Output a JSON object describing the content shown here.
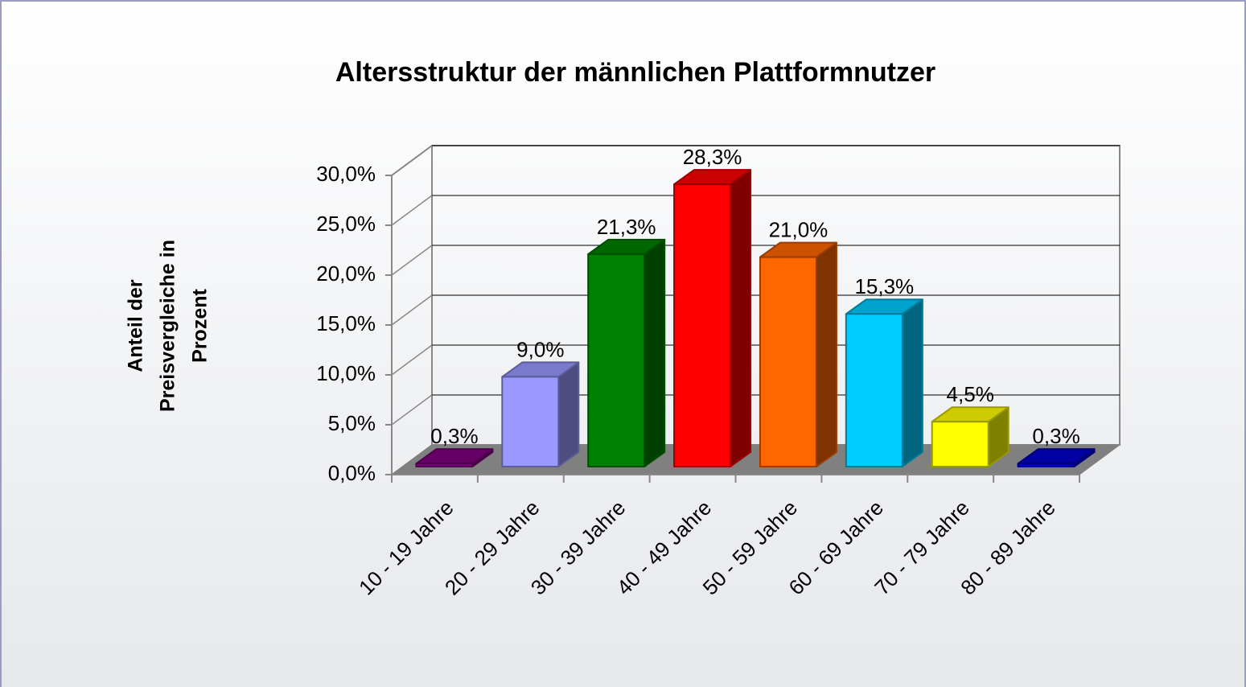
{
  "chart_data": {
    "type": "bar3d",
    "title": "Altersstruktur der männlichen Plattformnutzer",
    "ylabel": [
      "Anteil der",
      "Preisvergleiche in",
      "Prozent"
    ],
    "categories": [
      "10 - 19 Jahre",
      "20 - 29 Jahre",
      "30 - 39 Jahre",
      "40 - 49 Jahre",
      "50 - 59 Jahre",
      "60 - 69 Jahre",
      "70 - 79 Jahre",
      "80 - 89 Jahre"
    ],
    "values": [
      0.3,
      9.0,
      21.3,
      28.3,
      21.0,
      15.3,
      4.5,
      0.3
    ],
    "value_labels": [
      "0,3%",
      "9,0%",
      "21,3%",
      "28,3%",
      "21,0%",
      "15,3%",
      "4,5%",
      "0,3%"
    ],
    "colors": [
      "#800080",
      "#9999ff",
      "#008000",
      "#ff0000",
      "#ff6600",
      "#00ccff",
      "#ffff00",
      "#0000cc"
    ],
    "ylim": [
      0,
      30
    ],
    "yticks": [
      {
        "value": 0,
        "label": "0,0%"
      },
      {
        "value": 5,
        "label": "5,0%"
      },
      {
        "value": 10,
        "label": "10,0%"
      },
      {
        "value": 15,
        "label": "15,0%"
      },
      {
        "value": 20,
        "label": "20,0%"
      },
      {
        "value": 25,
        "label": "25,0%"
      },
      {
        "value": 30,
        "label": "30,0%"
      }
    ],
    "grid": true
  }
}
